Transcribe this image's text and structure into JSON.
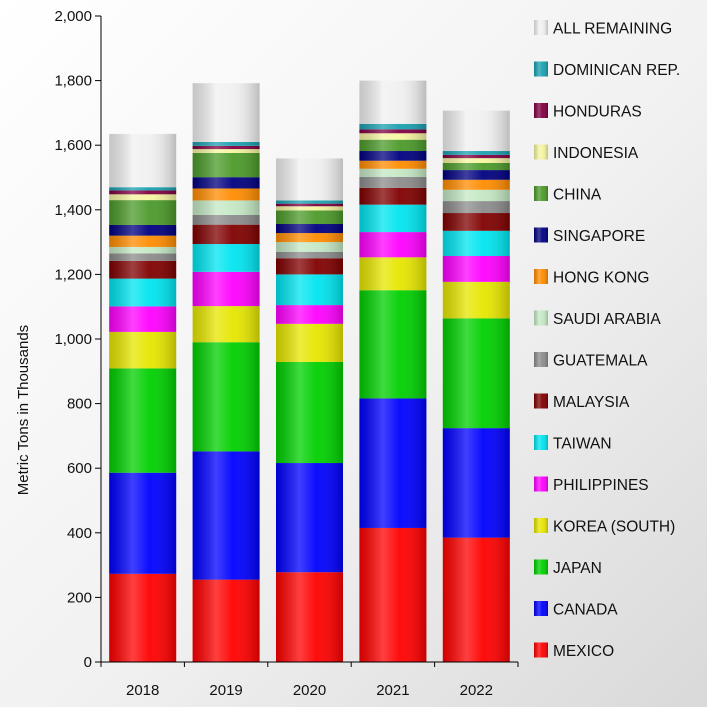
{
  "chart_data": {
    "type": "bar",
    "stacked": true,
    "title": "",
    "xlabel": "",
    "ylabel": "Metric Tons in Thousands",
    "ylim": [
      0,
      2000
    ],
    "yticks": [
      0,
      200,
      400,
      600,
      800,
      1000,
      1200,
      1400,
      1600,
      1800,
      2000
    ],
    "ytick_labels": [
      "0",
      "200",
      "400",
      "600",
      "800",
      "1,000",
      "1,200",
      "1,400",
      "1,600",
      "1,800",
      "2,000"
    ],
    "categories": [
      "2018",
      "2019",
      "2020",
      "2021",
      "2022"
    ],
    "legend_position": "right",
    "grid": false,
    "series": [
      {
        "name": "MEXICO",
        "color": "#ff0000",
        "values": [
          273,
          255,
          278,
          415,
          385
        ]
      },
      {
        "name": "CANADA",
        "color": "#0000ff",
        "values": [
          313,
          397,
          338,
          401,
          339
        ]
      },
      {
        "name": "JAPAN",
        "color": "#00d000",
        "values": [
          323,
          338,
          313,
          335,
          340
        ]
      },
      {
        "name": "KOREA (SOUTH)",
        "color": "#e6e600",
        "values": [
          113,
          112,
          118,
          102,
          113
        ]
      },
      {
        "name": "PHILIPPINES",
        "color": "#ff00ff",
        "values": [
          79,
          106,
          58,
          78,
          80
        ]
      },
      {
        "name": "TAIWAN",
        "color": "#00e5f0",
        "values": [
          86,
          86,
          95,
          85,
          78
        ]
      },
      {
        "name": "MALAYSIA",
        "color": "#800000",
        "values": [
          55,
          60,
          50,
          52,
          55
        ]
      },
      {
        "name": "GUATEMALA",
        "color": "#8c8c8c",
        "values": [
          23,
          30,
          20,
          34,
          37
        ]
      },
      {
        "name": "SAUDI ARABIA",
        "color": "#c4e8c4",
        "values": [
          20,
          45,
          30,
          25,
          35
        ]
      },
      {
        "name": "HONG KONG",
        "color": "#ff8c00",
        "values": [
          35,
          37,
          28,
          25,
          31
        ]
      },
      {
        "name": "SINGAPORE",
        "color": "#000080",
        "values": [
          33,
          35,
          28,
          30,
          30
        ]
      },
      {
        "name": "CHINA",
        "color": "#4c9a2a",
        "values": [
          77,
          75,
          42,
          35,
          22
        ]
      },
      {
        "name": "INDONESIA",
        "color": "#f5f5a0",
        "values": [
          18,
          12,
          13,
          20,
          15
        ]
      },
      {
        "name": "HONDURAS",
        "color": "#800040",
        "values": [
          12,
          10,
          8,
          12,
          10
        ]
      },
      {
        "name": "DOMINICAN REP.",
        "color": "#1aa0b0",
        "values": [
          10,
          12,
          10,
          17,
          12
        ]
      },
      {
        "name": "ALL REMAINING",
        "color": "#f0f0f0",
        "values": [
          165,
          182,
          130,
          134,
          125
        ]
      }
    ]
  }
}
